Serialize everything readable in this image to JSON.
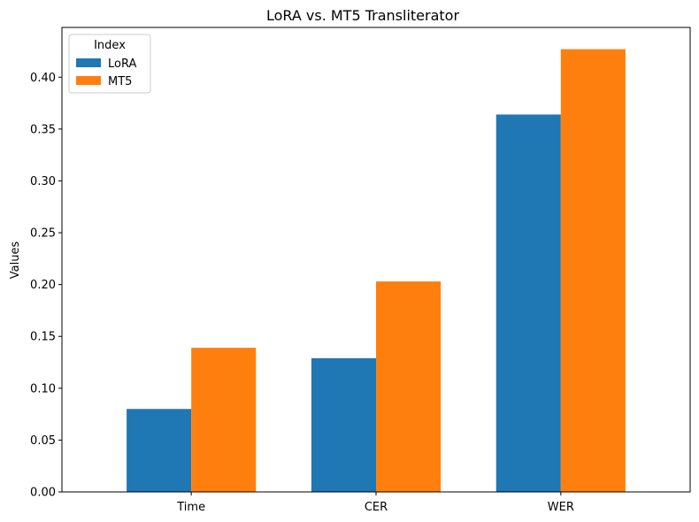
{
  "chart_data": {
    "type": "bar",
    "title": "LoRA vs. MT5 Transliterator",
    "xlabel": "",
    "ylabel": "Values",
    "categories": [
      "Time",
      "CER",
      "WER"
    ],
    "series": [
      {
        "name": "LoRA",
        "values": [
          0.08,
          0.129,
          0.364
        ],
        "color": "#1f77b4"
      },
      {
        "name": "MT5",
        "values": [
          0.139,
          0.203,
          0.427
        ],
        "color": "#ff7f0e"
      }
    ],
    "ylim": [
      0,
      0.448
    ],
    "yticks": [
      "0.00",
      "0.05",
      "0.10",
      "0.15",
      "0.20",
      "0.25",
      "0.30",
      "0.35",
      "0.40"
    ],
    "grid": false,
    "legend": {
      "title": "Index",
      "position": "top-left"
    }
  }
}
